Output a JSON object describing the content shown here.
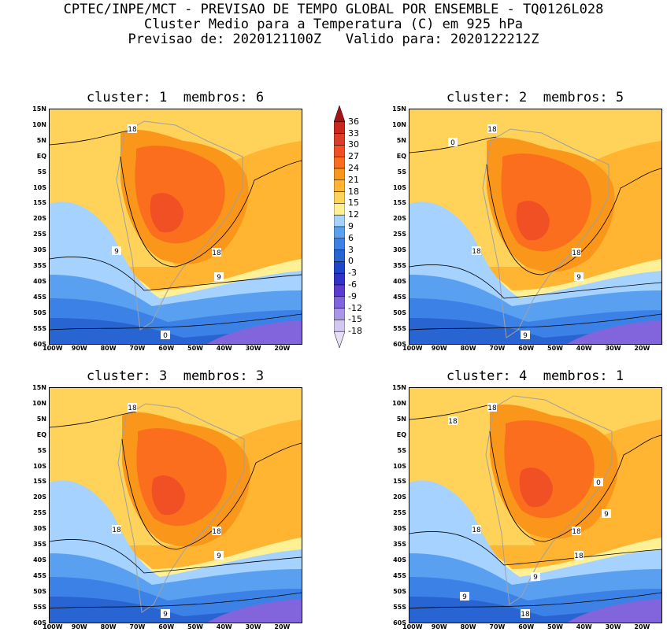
{
  "header": {
    "line1": "CPTEC/INPE/MCT - PREVISAO DE TEMPO GLOBAL POR ENSEMBLE - TQ0126L028",
    "line2": "Cluster Medio para a Temperatura (C) em 925 hPa",
    "line3": "Previsao de: 2020121100Z   Valido para: 2020122212Z"
  },
  "panels": [
    {
      "title": "cluster: 1  membros: 6",
      "contour_labels": [
        "18",
        "18",
        "9",
        "9",
        "0"
      ]
    },
    {
      "title": "cluster: 2  membros: 5",
      "contour_labels": [
        "18",
        "18",
        "18",
        "9",
        "9",
        "0"
      ]
    },
    {
      "title": "cluster: 3  membros: 3",
      "contour_labels": [
        "18",
        "18",
        "18",
        "9",
        "9"
      ]
    },
    {
      "title": "cluster: 4  membros: 1",
      "contour_labels": [
        "18",
        "18",
        "18",
        "18",
        "18",
        "18",
        "9",
        "9",
        "9",
        "0"
      ]
    }
  ],
  "lat_ticks": [
    "15N",
    "10N",
    "5N",
    "EQ",
    "5S",
    "10S",
    "15S",
    "20S",
    "25S",
    "30S",
    "35S",
    "40S",
    "45S",
    "50S",
    "55S",
    "60S"
  ],
  "lon_ticks": [
    "100W",
    "90W",
    "80W",
    "70W",
    "60W",
    "50W",
    "40W",
    "30W",
    "20W"
  ],
  "colorbar": {
    "labels": [
      "36",
      "33",
      "30",
      "27",
      "24",
      "21",
      "18",
      "15",
      "12",
      "9",
      "6",
      "3",
      "0",
      "-3",
      "-6",
      "-9",
      "-12",
      "-15",
      "-18"
    ],
    "colors": [
      "#a51414",
      "#c8281e",
      "#dc3c28",
      "#f05023",
      "#fa6e1e",
      "#fa9619",
      "#ffb432",
      "#ffd25a",
      "#fff096",
      "#a5d2ff",
      "#5aa0f0",
      "#3c82e6",
      "#2864d2",
      "#1e46c8",
      "#3232c8",
      "#5a3cd2",
      "#8264dc",
      "#aa96e6",
      "#d2c8f0",
      "#e6e0f5"
    ]
  }
}
